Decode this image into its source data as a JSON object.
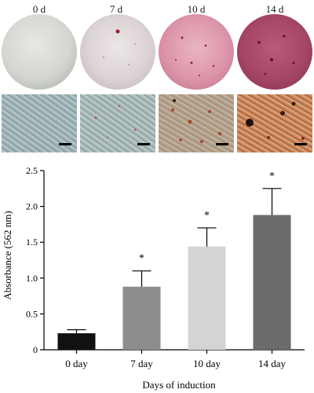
{
  "panels": [
    {
      "label": "0 d"
    },
    {
      "label": "7 d"
    },
    {
      "label": "10 d"
    },
    {
      "label": "14 d"
    }
  ],
  "chart_data": {
    "type": "bar",
    "categories": [
      "0 day",
      "7 day",
      "10 day",
      "14 day"
    ],
    "values": [
      0.23,
      0.88,
      1.44,
      1.88
    ],
    "errors": [
      0.05,
      0.22,
      0.26,
      0.37
    ],
    "significance": [
      "",
      "*",
      "*",
      "*"
    ],
    "bar_colors": [
      "#111111",
      "#8c8c8c",
      "#d4d4d4",
      "#6b6b6b"
    ],
    "xlabel": "Days of induction",
    "ylabel": "Absorbance (562 nm)",
    "ylim": [
      0,
      2.5
    ],
    "yticks": [
      "0",
      "0.5",
      "1.0",
      "1.5",
      "2.0",
      "2.5"
    ],
    "grid": false,
    "legend": "none"
  }
}
